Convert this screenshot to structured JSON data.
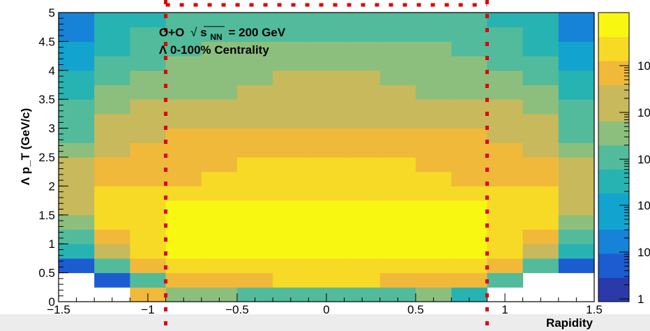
{
  "chart_data": {
    "type": "heatmap",
    "title": "",
    "xlabel": "Rapidity",
    "ylabel": "Λ p_T (GeV/c)",
    "xlim": [
      -1.5,
      1.5
    ],
    "ylim": [
      0,
      5
    ],
    "x_ticks": [
      "−1.5",
      "−1",
      "−0.5",
      "0",
      "0.5",
      "1",
      "1.5"
    ],
    "y_ticks": [
      "0",
      "0.5",
      "1",
      "1.5",
      "2",
      "2.5",
      "3",
      "3.5",
      "4",
      "4.5",
      "5"
    ],
    "colorbar_ticks": [
      "1",
      "10",
      "10",
      "10",
      "10",
      "10"
    ],
    "annotation_line1_prefix": "O+O",
    "annotation_sqrt": "s",
    "annotation_sub": "NN",
    "annotation_line1_suffix": "= 200 GeV",
    "annotation_line2": "Λ 0-100% Centrality",
    "log_scale": true,
    "x_bins": [
      -1.5,
      -1.3,
      -1.1,
      -0.9,
      -0.7,
      -0.5,
      -0.3,
      -0.1,
      0.1,
      0.3,
      0.5,
      0.7,
      0.9,
      1.1,
      1.3,
      1.5
    ],
    "y_bin_width": 0.25,
    "level_range": [
      0,
      10
    ],
    "levels": [
      [
        null,
        null,
        8,
        6,
        6,
        5,
        5,
        5,
        5,
        5,
        6,
        4,
        null,
        null,
        null
      ],
      [
        null,
        1,
        5,
        8,
        8,
        8,
        9,
        9,
        9,
        8,
        8,
        8,
        5,
        null,
        null
      ],
      [
        1,
        5,
        8,
        9,
        9,
        9,
        9,
        9,
        9,
        9,
        9,
        9,
        8,
        5,
        1
      ],
      [
        4,
        7,
        9,
        10,
        10,
        10,
        10,
        10,
        10,
        10,
        10,
        10,
        9,
        7,
        4
      ],
      [
        5,
        8,
        9,
        10,
        10,
        10,
        10,
        10,
        10,
        10,
        10,
        10,
        9,
        8,
        5
      ],
      [
        6,
        9,
        9,
        10,
        10,
        10,
        10,
        10,
        10,
        10,
        10,
        10,
        9,
        9,
        6
      ],
      [
        7,
        9,
        9,
        10,
        10,
        10,
        10,
        10,
        10,
        10,
        10,
        10,
        9,
        9,
        7
      ],
      [
        7,
        9,
        9,
        9,
        9,
        9,
        9,
        9,
        9,
        9,
        9,
        9,
        9,
        9,
        7
      ],
      [
        7,
        8,
        8,
        8,
        9,
        9,
        9,
        9,
        9,
        9,
        9,
        8,
        8,
        8,
        7
      ],
      [
        7,
        8,
        8,
        8,
        8,
        9,
        9,
        9,
        9,
        9,
        8,
        8,
        8,
        8,
        7
      ],
      [
        6,
        7,
        8,
        8,
        8,
        8,
        8,
        8,
        8,
        8,
        8,
        8,
        8,
        7,
        6
      ],
      [
        5,
        7,
        7,
        8,
        8,
        8,
        8,
        8,
        8,
        8,
        8,
        8,
        7,
        7,
        5
      ],
      [
        5,
        7,
        7,
        7,
        7,
        7,
        7,
        7,
        7,
        7,
        7,
        7,
        7,
        7,
        5
      ],
      [
        5,
        6,
        7,
        7,
        7,
        7,
        7,
        7,
        7,
        7,
        7,
        7,
        7,
        6,
        5
      ],
      [
        4,
        6,
        6,
        6,
        6,
        7,
        7,
        7,
        7,
        7,
        6,
        6,
        6,
        6,
        4
      ],
      [
        4,
        5,
        6,
        6,
        6,
        6,
        7,
        7,
        7,
        6,
        6,
        6,
        6,
        5,
        4
      ],
      [
        3,
        5,
        5,
        6,
        6,
        6,
        6,
        6,
        6,
        6,
        6,
        6,
        5,
        5,
        3
      ],
      [
        3,
        4,
        5,
        5,
        6,
        6,
        6,
        6,
        6,
        6,
        6,
        5,
        5,
        4,
        3
      ],
      [
        2,
        4,
        5,
        5,
        5,
        5,
        5,
        5,
        5,
        5,
        5,
        5,
        5,
        4,
        2
      ],
      [
        2,
        4,
        4,
        5,
        5,
        5,
        5,
        5,
        5,
        5,
        5,
        5,
        4,
        4,
        2
      ]
    ],
    "cut_lines_x": [
      -0.9,
      0.9
    ],
    "colorscale": [
      "#2a3aa8",
      "#1c5cd0",
      "#1682d8",
      "#13a3cf",
      "#27b3b1",
      "#52bb9b",
      "#8cbf7d",
      "#c7b95c",
      "#f0b93a",
      "#f7da25",
      "#f8f712"
    ],
    "cut_line_color": "#e00000"
  }
}
